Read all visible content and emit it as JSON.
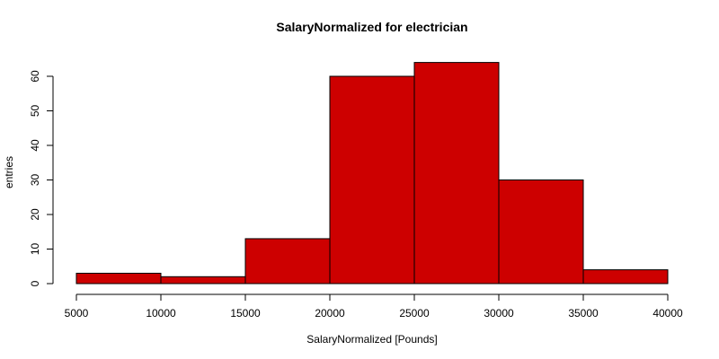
{
  "chart_data": {
    "type": "bar",
    "title": "SalaryNormalized for electrician",
    "xlabel": "SalaryNormalized [Pounds]",
    "ylabel": "entries",
    "bins": [
      {
        "from": 5000,
        "to": 10000,
        "count": 3
      },
      {
        "from": 10000,
        "to": 15000,
        "count": 2
      },
      {
        "from": 15000,
        "to": 20000,
        "count": 13
      },
      {
        "from": 20000,
        "to": 25000,
        "count": 60
      },
      {
        "from": 25000,
        "to": 30000,
        "count": 64
      },
      {
        "from": 30000,
        "to": 35000,
        "count": 30
      },
      {
        "from": 35000,
        "to": 40000,
        "count": 4
      }
    ],
    "xlim": [
      5000,
      40000
    ],
    "ylim": [
      0,
      60
    ],
    "x_ticks": [
      "5000",
      "10000",
      "15000",
      "20000",
      "25000",
      "30000",
      "35000",
      "40000"
    ],
    "y_ticks": [
      "0",
      "10",
      "20",
      "30",
      "40",
      "50",
      "60"
    ],
    "bar_color": "#cd0000",
    "edge_color": "#000000",
    "grid": false,
    "legend": "none"
  }
}
